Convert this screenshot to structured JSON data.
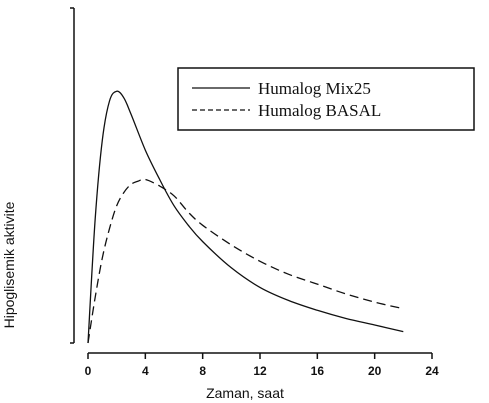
{
  "chart_data": {
    "type": "line",
    "title": "",
    "xlabel": "Zaman, saat",
    "ylabel": "Hipoglisemik aktivite",
    "xlim": [
      0,
      24
    ],
    "x_ticks": [
      0,
      4,
      8,
      12,
      16,
      20,
      24
    ],
    "y_ticks": [],
    "ylim": [
      0,
      100
    ],
    "grid": false,
    "legend_position": "top-right",
    "series": [
      {
        "name": "Humalog Mix25",
        "style": "solid",
        "color": "#111111",
        "x": [
          0,
          0.5,
          1,
          1.5,
          2,
          2.5,
          3,
          4,
          5,
          6,
          7,
          8,
          10,
          12,
          14,
          16,
          18,
          20,
          22
        ],
        "y": [
          0,
          38,
          62,
          74,
          77,
          75,
          70,
          59,
          50,
          42,
          36,
          31,
          23,
          17,
          13,
          10,
          7.5,
          5.5,
          3.5
        ]
      },
      {
        "name": "Humalog BASAL",
        "style": "dashed",
        "color": "#111111",
        "x": [
          0,
          0.5,
          1,
          1.5,
          2,
          2.5,
          3,
          3.5,
          4,
          5,
          6,
          7,
          8,
          10,
          12,
          14,
          16,
          18,
          20,
          22
        ],
        "y": [
          0,
          14,
          26,
          35,
          42,
          46,
          48.5,
          49.5,
          50,
          48,
          45,
          40,
          36,
          30,
          25,
          21,
          18,
          15,
          12.5,
          10.5
        ]
      }
    ]
  }
}
